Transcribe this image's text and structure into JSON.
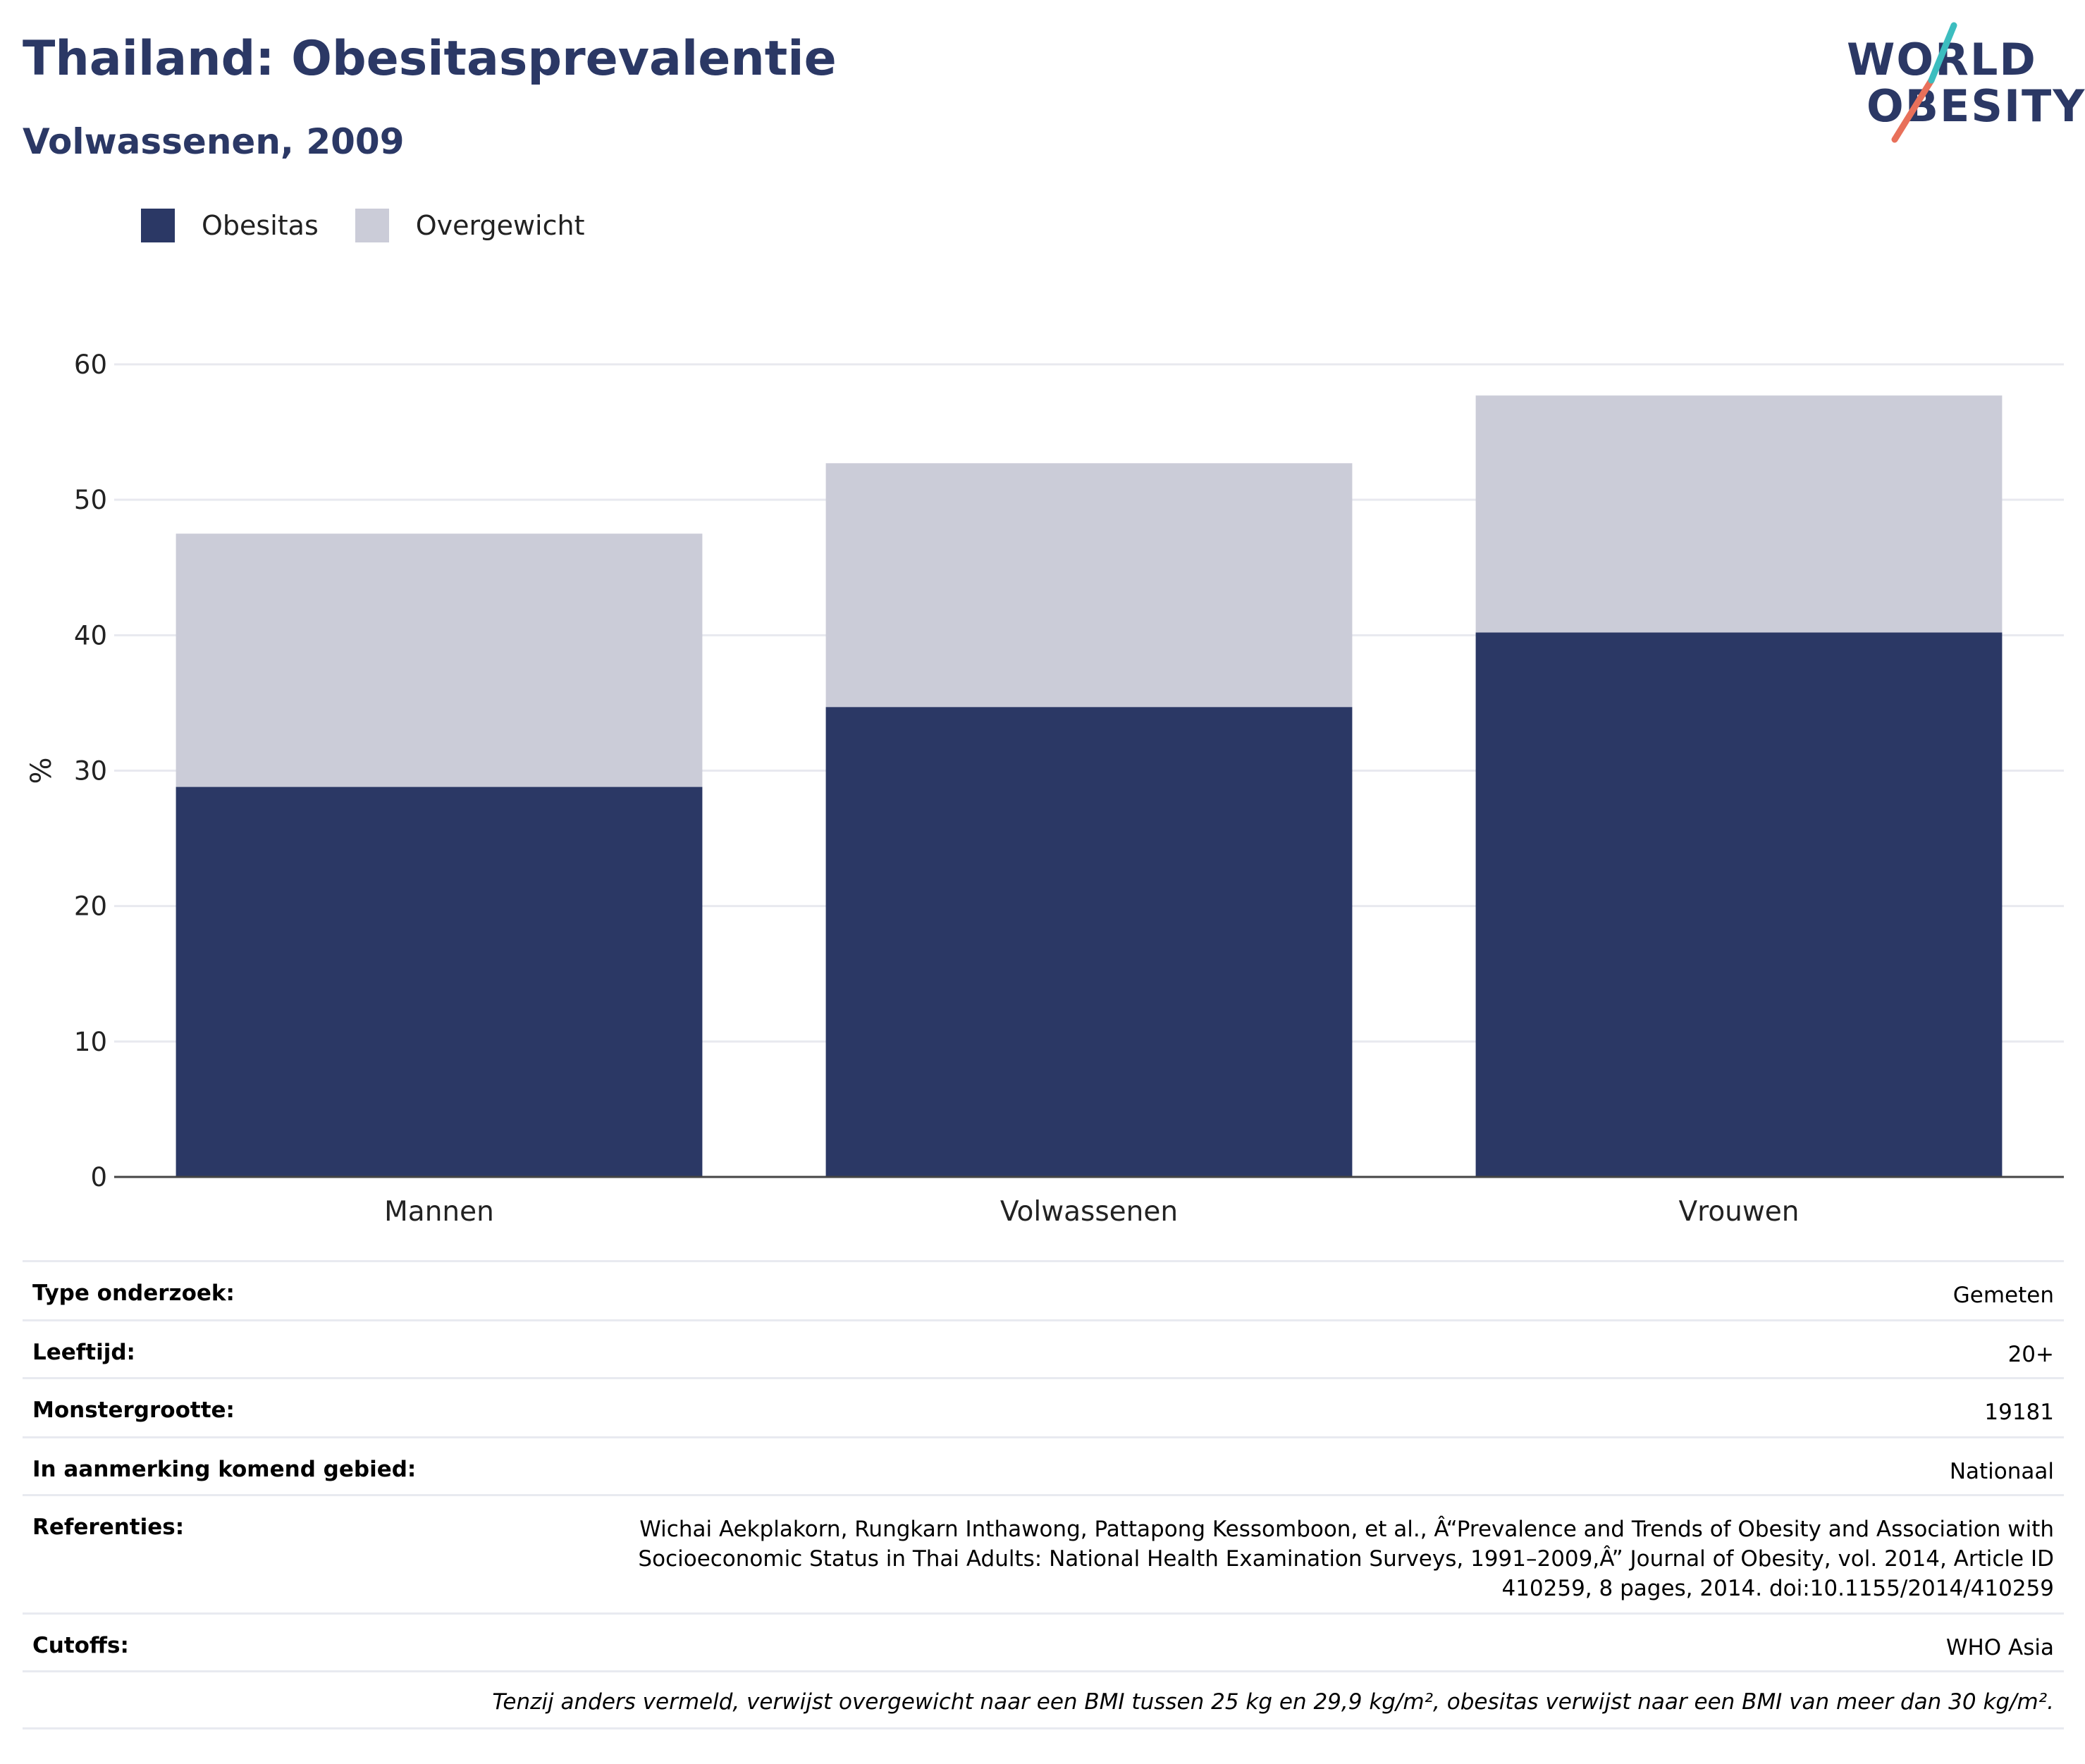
{
  "header": {
    "title": "Thailand: Obesitasprevalentie",
    "subtitle": "Volwassenen, 2009"
  },
  "logo": {
    "line1": "WORLD",
    "line2": "OBESITY",
    "accent_colors": [
      "#3cbdbf",
      "#e8705a"
    ]
  },
  "legend": [
    {
      "label": "Obesitas",
      "color": "#2b3865"
    },
    {
      "label": "Overgewicht",
      "color": "#cbccd8"
    }
  ],
  "chart_data": {
    "type": "bar",
    "stacked": true,
    "categories": [
      "Mannen",
      "Volwassenen",
      "Vrouwen"
    ],
    "series": [
      {
        "name": "Obesitas",
        "color": "#2b3865",
        "values": [
          28.8,
          34.7,
          40.2
        ]
      },
      {
        "name": "Overgewicht",
        "color": "#cbccd8",
        "values": [
          18.7,
          18.0,
          17.5
        ]
      }
    ],
    "ylabel": "%",
    "xlabel": "",
    "ylim": [
      0,
      60
    ],
    "yticks": [
      "0",
      "10",
      "20",
      "30",
      "40",
      "50",
      "60"
    ],
    "grid": true
  },
  "meta": {
    "survey_type": {
      "label": "Type onderzoek:",
      "value": "Gemeten"
    },
    "age": {
      "label": "Leeftijd:",
      "value": "20+"
    },
    "sample_size": {
      "label": "Monstergrootte:",
      "value": "19181"
    },
    "area": {
      "label": "In aanmerking komend gebied:",
      "value": "Nationaal"
    },
    "references": {
      "label": "Referenties:",
      "value": "Wichai Aekplakorn, Rungkarn Inthawong, Pattapong Kessomboon, et al., Â“Prevalence and Trends of Obesity and Association with Socioeconomic Status in Thai Adults: National Health Examination Surveys, 1991–2009,Â” Journal of Obesity, vol. 2014, Article ID 410259, 8 pages, 2014. doi:10.1155/2014/410259"
    },
    "cutoffs": {
      "label": "Cutoffs:",
      "value": "WHO Asia"
    },
    "note": "Tenzij anders vermeld, verwijst overgewicht naar een BMI tussen 25 kg en 29,9 kg/m², obesitas verwijst naar een BMI van meer dan 30 kg/m²."
  }
}
